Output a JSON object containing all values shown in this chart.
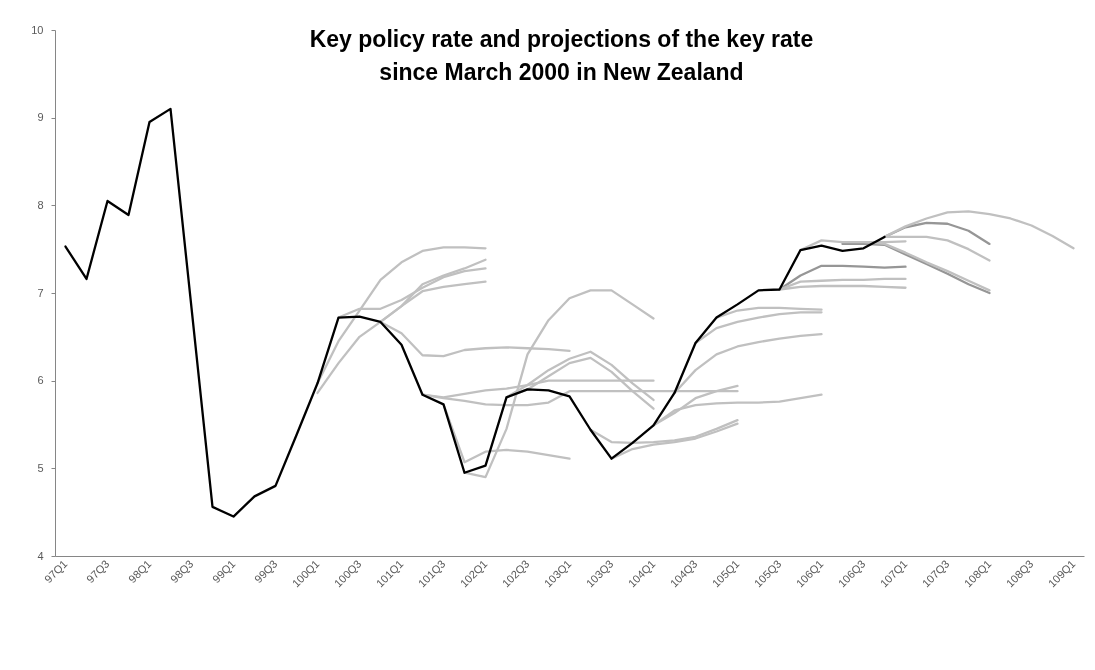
{
  "chart_data": {
    "type": "line",
    "title": "Key policy rate and projections of the key rate\nsince March 2000 in New Zealand",
    "categories": [
      "97Q1",
      null,
      "97Q3",
      null,
      "98Q1",
      null,
      "98Q3",
      null,
      "99Q1",
      null,
      "99Q3",
      null,
      "100Q1",
      null,
      "100Q3",
      null,
      "101Q1",
      null,
      "101Q3",
      null,
      "102Q1",
      null,
      "102Q3",
      null,
      "103Q1",
      null,
      "103Q3",
      null,
      "104Q1",
      null,
      "104Q3",
      null,
      "105Q1",
      null,
      "105Q3",
      null,
      "106Q1",
      null,
      "106Q3",
      null,
      "107Q1",
      null,
      "107Q3",
      null,
      "108Q1",
      null,
      "108Q3",
      null,
      "109Q1"
    ],
    "ylim": [
      4,
      10
    ],
    "yticks": [
      4,
      5,
      6,
      7,
      8,
      9,
      10
    ],
    "series": [
      {
        "color": "#c0c0c0",
        "values": [
          null,
          null,
          null,
          null,
          null,
          null,
          null,
          null,
          null,
          null,
          null,
          null,
          5.97,
          6.45,
          6.8,
          7.15,
          7.35,
          7.48,
          7.52,
          7.52,
          7.51,
          null,
          null,
          null,
          null,
          null,
          null,
          null,
          null,
          null,
          null,
          null,
          null,
          null,
          null,
          null,
          null,
          null,
          null,
          null,
          null,
          null,
          null,
          null,
          null,
          null,
          null,
          null,
          null
        ]
      },
      {
        "color": "#c0c0c0",
        "values": [
          null,
          null,
          null,
          null,
          null,
          null,
          null,
          null,
          null,
          null,
          null,
          null,
          null,
          6.72,
          6.82,
          6.82,
          6.92,
          7.06,
          7.18,
          7.25,
          7.28,
          null,
          null,
          null,
          null,
          null,
          null,
          null,
          null,
          null,
          null,
          null,
          null,
          null,
          null,
          null,
          null,
          null,
          null,
          null,
          null,
          null,
          null,
          null,
          null,
          null,
          null,
          null,
          null
        ]
      },
      {
        "color": "#c0c0c0",
        "values": [
          null,
          null,
          null,
          null,
          null,
          null,
          null,
          null,
          null,
          null,
          null,
          null,
          5.86,
          6.2,
          6.5,
          6.67,
          6.85,
          7.1,
          7.2,
          7.28,
          7.38,
          null,
          null,
          null,
          null,
          null,
          null,
          null,
          null,
          null,
          null,
          null,
          null,
          null,
          null,
          null,
          null,
          null,
          null,
          null,
          null,
          null,
          null,
          null,
          null,
          null,
          null,
          null,
          null
        ]
      },
      {
        "color": "#c0c0c0",
        "values": [
          null,
          null,
          null,
          null,
          null,
          null,
          null,
          null,
          null,
          null,
          null,
          null,
          null,
          null,
          null,
          6.67,
          6.85,
          7.02,
          7.07,
          7.1,
          7.13,
          null,
          null,
          null,
          null,
          null,
          null,
          null,
          null,
          null,
          null,
          null,
          null,
          null,
          null,
          null,
          null,
          null,
          null,
          null,
          null,
          null,
          null,
          null,
          null,
          null,
          null,
          null,
          null
        ]
      },
      {
        "color": "#c0c0c0",
        "values": [
          null,
          null,
          null,
          null,
          null,
          null,
          null,
          null,
          null,
          null,
          null,
          null,
          null,
          null,
          null,
          6.67,
          6.54,
          6.29,
          6.28,
          6.35,
          6.37,
          6.38,
          6.37,
          6.36,
          6.34,
          null,
          null,
          null,
          null,
          null,
          null,
          null,
          null,
          null,
          null,
          null,
          null,
          null,
          null,
          null,
          null,
          null,
          null,
          null,
          null,
          null,
          null,
          null,
          null
        ]
      },
      {
        "color": "#c0c0c0",
        "values": [
          null,
          null,
          null,
          null,
          null,
          null,
          null,
          null,
          null,
          null,
          null,
          null,
          null,
          null,
          null,
          null,
          null,
          5.84,
          5.81,
          5.85,
          5.89,
          5.91,
          5.95,
          6.0,
          6.0,
          6.0,
          6.0,
          6.0,
          6.0,
          null,
          null,
          null,
          null,
          null,
          null,
          null,
          null,
          null,
          null,
          null,
          null,
          null,
          null,
          null,
          null,
          null,
          null,
          null,
          null
        ]
      },
      {
        "color": "#c0c0c0",
        "values": [
          null,
          null,
          null,
          null,
          null,
          null,
          null,
          null,
          null,
          null,
          null,
          null,
          null,
          null,
          null,
          null,
          null,
          5.84,
          5.8,
          5.77,
          5.73,
          5.72,
          5.72,
          5.75,
          5.88,
          5.88,
          5.88,
          5.88,
          5.88,
          5.88,
          5.88,
          5.88,
          5.88,
          null,
          null,
          null,
          null,
          null,
          null,
          null,
          null,
          null,
          null,
          null,
          null,
          null,
          null,
          null,
          null
        ]
      },
      {
        "color": "#c0c0c0",
        "values": [
          null,
          null,
          null,
          null,
          null,
          null,
          null,
          null,
          null,
          null,
          null,
          null,
          null,
          null,
          null,
          null,
          null,
          null,
          5.73,
          5.07,
          5.19,
          5.21,
          5.19,
          5.15,
          5.11,
          null,
          null,
          null,
          null,
          null,
          null,
          null,
          null,
          null,
          null,
          null,
          null,
          null,
          null,
          null,
          null,
          null,
          null,
          null,
          null,
          null,
          null,
          null,
          null
        ]
      },
      {
        "color": "#c0c0c0",
        "values": [
          null,
          null,
          null,
          null,
          null,
          null,
          null,
          null,
          null,
          null,
          null,
          null,
          null,
          null,
          null,
          null,
          null,
          null,
          null,
          4.95,
          4.9,
          5.45,
          6.3,
          6.69,
          6.94,
          7.03,
          7.03,
          6.87,
          6.71,
          null,
          null,
          null,
          null,
          null,
          null,
          null,
          null,
          null,
          null,
          null,
          null,
          null,
          null,
          null,
          null,
          null,
          null,
          null,
          null
        ]
      },
      {
        "color": "#c0c0c0",
        "values": [
          null,
          null,
          null,
          null,
          null,
          null,
          null,
          null,
          null,
          null,
          null,
          null,
          null,
          null,
          null,
          null,
          null,
          null,
          null,
          null,
          null,
          5.81,
          5.95,
          6.12,
          6.25,
          6.33,
          6.18,
          5.97,
          5.78,
          null,
          null,
          null,
          null,
          null,
          null,
          null,
          null,
          null,
          null,
          null,
          null,
          null,
          null,
          null,
          null,
          null,
          null,
          null,
          null
        ]
      },
      {
        "color": "#c0c0c0",
        "values": [
          null,
          null,
          null,
          null,
          null,
          null,
          null,
          null,
          null,
          null,
          null,
          null,
          null,
          null,
          null,
          null,
          null,
          null,
          null,
          null,
          null,
          5.81,
          5.9,
          6.05,
          6.2,
          6.26,
          6.1,
          5.88,
          5.68,
          null,
          null,
          null,
          null,
          null,
          null,
          null,
          null,
          null,
          null,
          null,
          null,
          null,
          null,
          null,
          null,
          null,
          null,
          null,
          null
        ]
      },
      {
        "color": "#c0c0c0",
        "values": [
          null,
          null,
          null,
          null,
          null,
          null,
          null,
          null,
          null,
          null,
          null,
          null,
          null,
          null,
          null,
          null,
          null,
          null,
          null,
          null,
          null,
          null,
          null,
          null,
          null,
          5.44,
          5.3,
          5.29,
          5.3,
          5.32,
          5.36,
          5.45,
          5.55,
          null,
          null,
          null,
          null,
          null,
          null,
          null,
          null,
          null,
          null,
          null,
          null,
          null,
          null,
          null,
          null
        ]
      },
      {
        "color": "#c0c0c0",
        "values": [
          null,
          null,
          null,
          null,
          null,
          null,
          null,
          null,
          null,
          null,
          null,
          null,
          null,
          null,
          null,
          null,
          null,
          null,
          null,
          null,
          null,
          null,
          null,
          null,
          null,
          null,
          5.11,
          5.22,
          5.27,
          5.3,
          5.34,
          5.42,
          5.51,
          null,
          null,
          null,
          null,
          null,
          null,
          null,
          null,
          null,
          null,
          null,
          null,
          null,
          null,
          null,
          null
        ]
      },
      {
        "color": "#c0c0c0",
        "values": [
          null,
          null,
          null,
          null,
          null,
          null,
          null,
          null,
          null,
          null,
          null,
          null,
          null,
          null,
          null,
          null,
          null,
          null,
          null,
          null,
          null,
          null,
          null,
          null,
          null,
          null,
          null,
          null,
          5.49,
          5.66,
          5.72,
          5.74,
          5.75,
          5.75,
          5.76,
          5.8,
          5.84,
          null,
          null,
          null,
          null,
          null,
          null,
          null,
          null,
          null,
          null,
          null,
          null
        ]
      },
      {
        "color": "#c0c0c0",
        "values": [
          null,
          null,
          null,
          null,
          null,
          null,
          null,
          null,
          null,
          null,
          null,
          null,
          null,
          null,
          null,
          null,
          null,
          null,
          null,
          null,
          null,
          null,
          null,
          null,
          null,
          null,
          null,
          null,
          5.49,
          5.63,
          5.8,
          5.88,
          5.94,
          null,
          null,
          null,
          null,
          null,
          null,
          null,
          null,
          null,
          null,
          null,
          null,
          null,
          null,
          null,
          null
        ]
      },
      {
        "color": "#c0c0c0",
        "values": [
          null,
          null,
          null,
          null,
          null,
          null,
          null,
          null,
          null,
          null,
          null,
          null,
          null,
          null,
          null,
          null,
          null,
          null,
          null,
          null,
          null,
          null,
          null,
          null,
          null,
          null,
          null,
          null,
          null,
          5.86,
          6.12,
          6.3,
          6.39,
          6.44,
          6.48,
          6.51,
          6.53,
          null,
          null,
          null,
          null,
          null,
          null,
          null,
          null,
          null,
          null,
          null,
          null
        ]
      },
      {
        "color": "#c0c0c0",
        "values": [
          null,
          null,
          null,
          null,
          null,
          null,
          null,
          null,
          null,
          null,
          null,
          null,
          null,
          null,
          null,
          null,
          null,
          null,
          null,
          null,
          null,
          null,
          null,
          null,
          null,
          null,
          null,
          null,
          null,
          null,
          6.43,
          6.6,
          6.67,
          6.72,
          6.76,
          6.78,
          6.78,
          null,
          null,
          null,
          null,
          null,
          null,
          null,
          null,
          null,
          null,
          null,
          null
        ]
      },
      {
        "color": "#c0c0c0",
        "values": [
          null,
          null,
          null,
          null,
          null,
          null,
          null,
          null,
          null,
          null,
          null,
          null,
          null,
          null,
          null,
          null,
          null,
          null,
          null,
          null,
          null,
          null,
          null,
          null,
          null,
          null,
          null,
          null,
          null,
          null,
          null,
          6.72,
          6.8,
          6.83,
          6.83,
          6.82,
          6.81,
          null,
          null,
          null,
          null,
          null,
          null,
          null,
          null,
          null,
          null,
          null,
          null
        ]
      },
      {
        "color": "#969696",
        "values": [
          null,
          null,
          null,
          null,
          null,
          null,
          null,
          null,
          null,
          null,
          null,
          null,
          null,
          null,
          null,
          null,
          null,
          null,
          null,
          null,
          null,
          null,
          null,
          null,
          null,
          null,
          null,
          null,
          null,
          null,
          null,
          null,
          null,
          null,
          7.04,
          7.2,
          7.31,
          7.31,
          7.3,
          7.29,
          7.3,
          null,
          null,
          null,
          null,
          null,
          null,
          null,
          null
        ]
      },
      {
        "color": "#c0c0c0",
        "values": [
          null,
          null,
          null,
          null,
          null,
          null,
          null,
          null,
          null,
          null,
          null,
          null,
          null,
          null,
          null,
          null,
          null,
          null,
          null,
          null,
          null,
          null,
          null,
          null,
          null,
          null,
          null,
          null,
          null,
          null,
          null,
          null,
          null,
          null,
          7.04,
          7.13,
          7.14,
          7.15,
          7.15,
          7.16,
          7.16,
          null,
          null,
          null,
          null,
          null,
          null,
          null,
          null
        ]
      },
      {
        "color": "#c0c0c0",
        "values": [
          null,
          null,
          null,
          null,
          null,
          null,
          null,
          null,
          null,
          null,
          null,
          null,
          null,
          null,
          null,
          null,
          null,
          null,
          null,
          null,
          null,
          null,
          null,
          null,
          null,
          null,
          null,
          null,
          null,
          null,
          null,
          null,
          null,
          null,
          7.04,
          7.07,
          7.08,
          7.08,
          7.08,
          7.07,
          7.06,
          null,
          null,
          null,
          null,
          null,
          null,
          null,
          null
        ]
      },
      {
        "color": "#c0c0c0",
        "values": [
          null,
          null,
          null,
          null,
          null,
          null,
          null,
          null,
          null,
          null,
          null,
          null,
          null,
          null,
          null,
          null,
          null,
          null,
          null,
          null,
          null,
          null,
          null,
          null,
          null,
          null,
          null,
          null,
          null,
          null,
          null,
          null,
          null,
          null,
          null,
          7.49,
          7.6,
          7.58,
          7.58,
          7.58,
          7.59,
          null,
          null,
          null,
          null,
          null,
          null,
          null,
          null
        ]
      },
      {
        "color": "#969696",
        "values": [
          null,
          null,
          null,
          null,
          null,
          null,
          null,
          null,
          null,
          null,
          null,
          null,
          null,
          null,
          null,
          null,
          null,
          null,
          null,
          null,
          null,
          null,
          null,
          null,
          null,
          null,
          null,
          null,
          null,
          null,
          null,
          null,
          null,
          null,
          null,
          null,
          null,
          7.56,
          7.56,
          7.55,
          7.44,
          7.33,
          7.22,
          7.1,
          7.0,
          null,
          null,
          null,
          null
        ]
      },
      {
        "color": "#c0c0c0",
        "values": [
          null,
          null,
          null,
          null,
          null,
          null,
          null,
          null,
          null,
          null,
          null,
          null,
          null,
          null,
          null,
          null,
          null,
          null,
          null,
          null,
          null,
          null,
          null,
          null,
          null,
          null,
          null,
          null,
          null,
          null,
          null,
          null,
          null,
          null,
          null,
          null,
          null,
          7.58,
          7.58,
          7.56,
          7.46,
          7.35,
          7.25,
          7.14,
          7.03,
          null,
          null,
          null,
          null
        ]
      },
      {
        "color": "#969696",
        "values": [
          null,
          null,
          null,
          null,
          null,
          null,
          null,
          null,
          null,
          null,
          null,
          null,
          null,
          null,
          null,
          null,
          null,
          null,
          null,
          null,
          null,
          null,
          null,
          null,
          null,
          null,
          null,
          null,
          null,
          null,
          null,
          null,
          null,
          null,
          null,
          null,
          null,
          null,
          null,
          7.64,
          7.75,
          7.8,
          7.79,
          7.71,
          7.56,
          null,
          null,
          null,
          null
        ]
      },
      {
        "color": "#c0c0c0",
        "values": [
          null,
          null,
          null,
          null,
          null,
          null,
          null,
          null,
          null,
          null,
          null,
          null,
          null,
          null,
          null,
          null,
          null,
          null,
          null,
          null,
          null,
          null,
          null,
          null,
          null,
          null,
          null,
          null,
          null,
          null,
          null,
          null,
          null,
          null,
          null,
          null,
          null,
          null,
          null,
          7.64,
          7.64,
          7.64,
          7.6,
          7.5,
          7.37,
          null,
          null,
          null,
          null
        ]
      },
      {
        "color": "#c0c0c0",
        "values": [
          null,
          null,
          null,
          null,
          null,
          null,
          null,
          null,
          null,
          null,
          null,
          null,
          null,
          null,
          null,
          null,
          null,
          null,
          null,
          null,
          null,
          null,
          null,
          null,
          null,
          null,
          null,
          null,
          null,
          null,
          null,
          null,
          null,
          null,
          null,
          null,
          null,
          null,
          null,
          7.64,
          7.76,
          7.85,
          7.92,
          7.93,
          7.9,
          7.85,
          7.77,
          7.65,
          7.51
        ]
      },
      {
        "color": "#000000",
        "values": [
          7.53,
          7.16,
          8.05,
          7.89,
          8.95,
          9.1,
          6.83,
          4.56,
          4.45,
          4.68,
          4.8,
          5.38,
          5.97,
          6.72,
          6.73,
          6.67,
          6.41,
          5.84,
          5.73,
          4.95,
          5.03,
          5.81,
          5.9,
          5.89,
          5.82,
          5.44,
          5.11,
          5.29,
          5.49,
          5.86,
          6.43,
          6.72,
          6.87,
          7.03,
          7.04,
          7.49,
          7.54,
          7.48,
          7.51,
          7.64,
          null,
          null,
          null,
          null,
          null,
          null,
          null,
          null,
          null
        ]
      }
    ]
  }
}
